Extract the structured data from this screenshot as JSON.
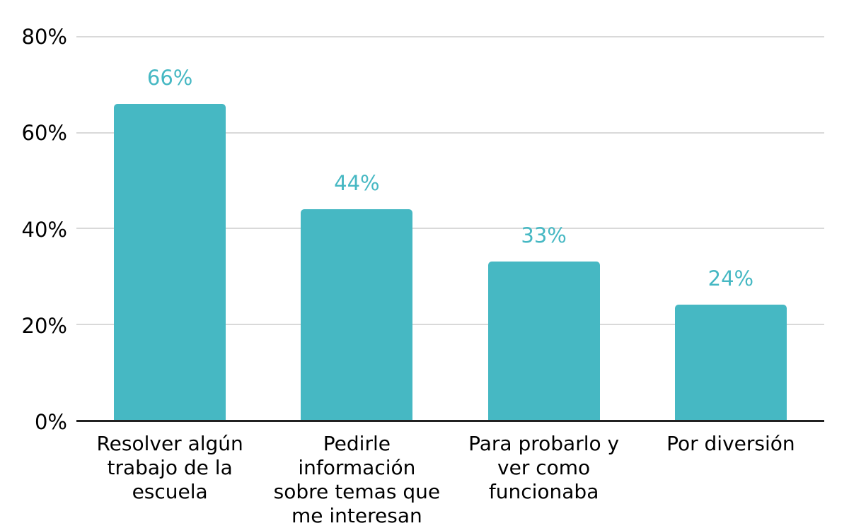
{
  "colors": {
    "accent": "#46b8c3",
    "gridline": "#d9d9d9",
    "axis_line": "#212121",
    "tick_text": "#000000"
  },
  "chart_data": {
    "type": "bar",
    "title": "",
    "xlabel": "",
    "ylabel": "",
    "categories": [
      "Resolver algún trabajo de la escuela",
      "Pedirle información sobre temas que me interesan",
      "Para probarlo y ver como funcionaba",
      "Por diversión"
    ],
    "values": [
      66,
      44,
      33,
      24
    ],
    "value_labels": [
      "66%",
      "44%",
      "33%",
      "24%"
    ],
    "y_ticks": [
      "0%",
      "20%",
      "40%",
      "60%",
      "80%"
    ],
    "ylim": [
      0,
      80
    ],
    "grid": true,
    "legend": "none",
    "bar_color": "#46b8c3"
  }
}
